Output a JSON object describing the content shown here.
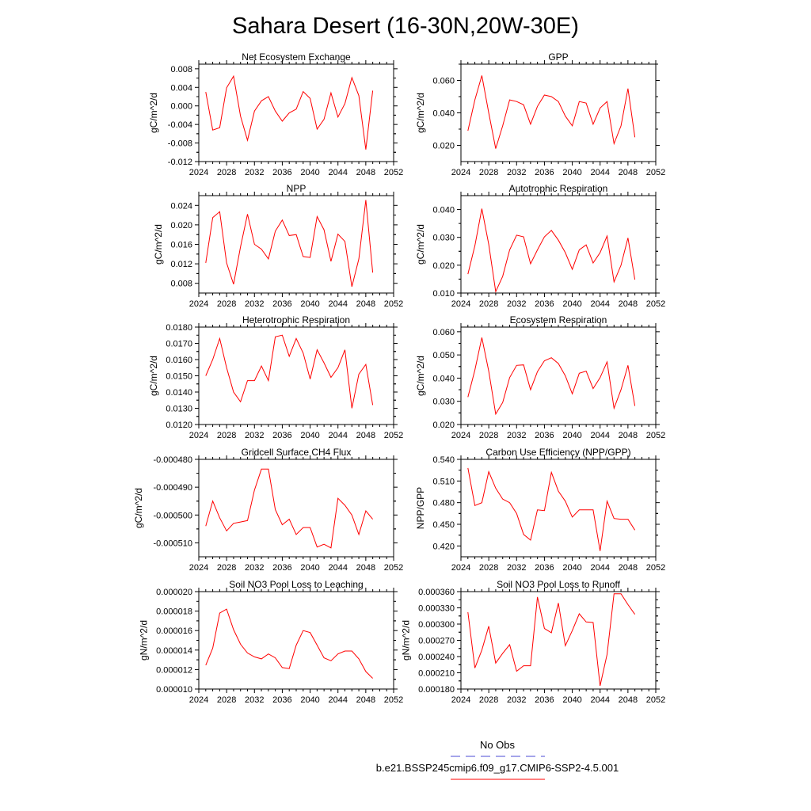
{
  "title": "Sahara Desert (16-30N,20W-30E)",
  "legend": {
    "obs_label": "No Obs",
    "obs_color": "#4b4bd6",
    "model_label": "b.e21.BSSP245cmip6.f09_g17.CMIP6-SSP2-4.5.001",
    "model_color": "#ff0000"
  },
  "chart_data": [
    {
      "type": "line",
      "title": "Net Ecosystem Exchange",
      "ylabel": "gC/m^2/d",
      "xlim": [
        2024,
        2052
      ],
      "xticks": [
        "2024",
        "2028",
        "2032",
        "2036",
        "2040",
        "2044",
        "2048",
        "2052"
      ],
      "ylim": [
        -0.012,
        0.009
      ],
      "yticks": [
        "0.008",
        "0.004",
        "0.000",
        "-0.004",
        "-0.008",
        "-0.012"
      ],
      "x": [
        2025,
        2026,
        2027,
        2028,
        2029,
        2030,
        2031,
        2032,
        2033,
        2034,
        2035,
        2036,
        2037,
        2038,
        2039,
        2040,
        2041,
        2042,
        2043,
        2044,
        2045,
        2046,
        2047,
        2048,
        2049
      ],
      "y": [
        0.003,
        -0.0052,
        -0.0047,
        0.0039,
        0.0064,
        -0.0022,
        -0.0074,
        -0.0011,
        0.0011,
        0.002,
        -0.0011,
        -0.0033,
        -0.0015,
        -0.0007,
        0.0031,
        0.0016,
        -0.005,
        -0.0029,
        0.0028,
        -0.0024,
        0.0005,
        0.0061,
        0.0022,
        -0.0094,
        0.0033
      ]
    },
    {
      "type": "line",
      "title": "GPP",
      "ylabel": "gC/m^2/d",
      "xlim": [
        2024,
        2052
      ],
      "xticks": [
        "2024",
        "2028",
        "2032",
        "2036",
        "2040",
        "2044",
        "2048",
        "2052"
      ],
      "ylim": [
        0.01,
        0.07
      ],
      "yticks": [
        "0.060",
        "0.040",
        "0.020"
      ],
      "x": [
        2025,
        2026,
        2027,
        2028,
        2029,
        2030,
        2031,
        2032,
        2033,
        2034,
        2035,
        2036,
        2037,
        2038,
        2039,
        2040,
        2041,
        2042,
        2043,
        2044,
        2045,
        2046,
        2047,
        2048,
        2049
      ],
      "y": [
        0.029,
        0.048,
        0.063,
        0.04,
        0.018,
        0.032,
        0.048,
        0.047,
        0.045,
        0.033,
        0.044,
        0.051,
        0.05,
        0.047,
        0.038,
        0.032,
        0.047,
        0.046,
        0.033,
        0.043,
        0.047,
        0.021,
        0.032,
        0.055,
        0.025
      ]
    },
    {
      "type": "line",
      "title": "NPP",
      "ylabel": "gC/m^2/d",
      "xlim": [
        2024,
        2052
      ],
      "xticks": [
        "2024",
        "2028",
        "2032",
        "2036",
        "2040",
        "2044",
        "2048",
        "2052"
      ],
      "ylim": [
        0.006,
        0.026
      ],
      "yticks": [
        "0.024",
        "0.020",
        "0.016",
        "0.012",
        "0.008"
      ],
      "x": [
        2025,
        2026,
        2027,
        2028,
        2029,
        2030,
        2031,
        2032,
        2033,
        2034,
        2035,
        2036,
        2037,
        2038,
        2039,
        2040,
        2041,
        2042,
        2043,
        2044,
        2045,
        2046,
        2047,
        2048,
        2049
      ],
      "y": [
        0.0122,
        0.0215,
        0.0227,
        0.0122,
        0.0078,
        0.0155,
        0.0222,
        0.016,
        0.015,
        0.013,
        0.0187,
        0.021,
        0.0178,
        0.018,
        0.0135,
        0.0133,
        0.0217,
        0.019,
        0.0125,
        0.0181,
        0.0166,
        0.0073,
        0.013,
        0.0251,
        0.0102
      ]
    },
    {
      "type": "line",
      "title": "Autotrophic Respiration",
      "ylabel": "gC/m^2/d",
      "xlim": [
        2024,
        2052
      ],
      "xticks": [
        "2024",
        "2028",
        "2032",
        "2036",
        "2040",
        "2044",
        "2048",
        "2052"
      ],
      "ylim": [
        0.01,
        0.045
      ],
      "yticks": [
        "0.040",
        "0.030",
        "0.020",
        "0.010"
      ],
      "x": [
        2025,
        2026,
        2027,
        2028,
        2029,
        2030,
        2031,
        2032,
        2033,
        2034,
        2035,
        2036,
        2037,
        2038,
        2039,
        2040,
        2041,
        2042,
        2043,
        2044,
        2045,
        2046,
        2047,
        2048,
        2049
      ],
      "y": [
        0.0168,
        0.027,
        0.0403,
        0.0275,
        0.0105,
        0.016,
        0.0255,
        0.0308,
        0.0302,
        0.0205,
        0.0255,
        0.0302,
        0.0325,
        0.029,
        0.0245,
        0.0185,
        0.0255,
        0.0273,
        0.0208,
        0.0245,
        0.0305,
        0.014,
        0.02,
        0.0298,
        0.0148
      ]
    },
    {
      "type": "line",
      "title": "Heterotrophic Respiration",
      "ylabel": "gC/m^2/d",
      "xlim": [
        2024,
        2052
      ],
      "xticks": [
        "2024",
        "2028",
        "2032",
        "2036",
        "2040",
        "2044",
        "2048",
        "2052"
      ],
      "ylim": [
        0.012,
        0.018
      ],
      "yticks": [
        "0.0180",
        "0.0170",
        "0.0160",
        "0.0150",
        "0.0140",
        "0.0130",
        "0.0120"
      ],
      "x": [
        2025,
        2026,
        2027,
        2028,
        2029,
        2030,
        2031,
        2032,
        2033,
        2034,
        2035,
        2036,
        2037,
        2038,
        2039,
        2040,
        2041,
        2042,
        2043,
        2044,
        2045,
        2046,
        2047,
        2048,
        2049
      ],
      "y": [
        0.015,
        0.016,
        0.0173,
        0.0155,
        0.014,
        0.0134,
        0.0147,
        0.0147,
        0.0156,
        0.0147,
        0.0174,
        0.0175,
        0.0162,
        0.0173,
        0.0164,
        0.0148,
        0.0166,
        0.0158,
        0.0149,
        0.0155,
        0.0166,
        0.013,
        0.0151,
        0.0157,
        0.0132
      ]
    },
    {
      "type": "line",
      "title": "Ecosystem Respiration",
      "ylabel": "gC/m^2/d",
      "xlim": [
        2024,
        2052
      ],
      "xticks": [
        "2024",
        "2028",
        "2032",
        "2036",
        "2040",
        "2044",
        "2048",
        "2052"
      ],
      "ylim": [
        0.02,
        0.062
      ],
      "yticks": [
        "0.060",
        "0.050",
        "0.040",
        "0.030",
        "0.020"
      ],
      "x": [
        2025,
        2026,
        2027,
        2028,
        2029,
        2030,
        2031,
        2032,
        2033,
        2034,
        2035,
        2036,
        2037,
        2038,
        2039,
        2040,
        2041,
        2042,
        2043,
        2044,
        2045,
        2046,
        2047,
        2048,
        2049
      ],
      "y": [
        0.0318,
        0.0435,
        0.0575,
        0.043,
        0.0245,
        0.0295,
        0.0402,
        0.0455,
        0.0457,
        0.035,
        0.0428,
        0.0475,
        0.0488,
        0.0463,
        0.041,
        0.0332,
        0.0421,
        0.043,
        0.0355,
        0.0402,
        0.047,
        0.027,
        0.035,
        0.0455,
        0.028
      ]
    },
    {
      "type": "line",
      "title": "Gridcell Surface CH4 Flux",
      "ylabel": "gC/m^2/d",
      "xlim": [
        2024,
        2052
      ],
      "xticks": [
        "2024",
        "2028",
        "2032",
        "2036",
        "2040",
        "2044",
        "2048",
        "2052"
      ],
      "ylim": [
        -0.000515,
        -0.00048
      ],
      "yticks": [
        "-0.000480",
        "-0.000490",
        "-0.000500",
        "-0.000510"
      ],
      "x": [
        2025,
        2026,
        2027,
        2028,
        2029,
        2030,
        2031,
        2032,
        2033,
        2034,
        2035,
        2036,
        2037,
        2038,
        2039,
        2040,
        2041,
        2042,
        2043,
        2044,
        2045,
        2046,
        2047,
        2048,
        2049
      ],
      "y": [
        -0.000504,
        -0.000495,
        -0.000501,
        -0.0005057,
        -0.000503,
        -0.0005025,
        -0.000502,
        -0.000491,
        -0.0004835,
        -0.0004835,
        -0.000498,
        -0.0005035,
        -0.0005015,
        -0.000507,
        -0.0005045,
        -0.0005045,
        -0.0005115,
        -0.0005105,
        -0.0005118,
        -0.000494,
        -0.0004965,
        -0.0005,
        -0.000507,
        -0.0004985,
        -0.0005015
      ]
    },
    {
      "type": "line",
      "title": "Carbon Use Efficiency (NPP/GPP)",
      "ylabel": "NPP/GPP",
      "xlim": [
        2024,
        2052
      ],
      "xticks": [
        "2024",
        "2028",
        "2032",
        "2036",
        "2040",
        "2044",
        "2048",
        "2052"
      ],
      "ylim": [
        0.405,
        0.54
      ],
      "yticks": [
        "0.540",
        "0.510",
        "0.480",
        "0.450",
        "0.420"
      ],
      "x": [
        2025,
        2026,
        2027,
        2028,
        2029,
        2030,
        2031,
        2032,
        2033,
        2034,
        2035,
        2036,
        2037,
        2038,
        2039,
        2040,
        2041,
        2042,
        2043,
        2044,
        2045,
        2046,
        2047,
        2048,
        2049
      ],
      "y": [
        0.528,
        0.476,
        0.48,
        0.523,
        0.5,
        0.485,
        0.48,
        0.465,
        0.436,
        0.428,
        0.47,
        0.469,
        0.522,
        0.496,
        0.482,
        0.46,
        0.47,
        0.47,
        0.47,
        0.413,
        0.482,
        0.458,
        0.457,
        0.457,
        0.442
      ]
    },
    {
      "type": "line",
      "title": "Soil NO3 Pool Loss to Leaching",
      "ylabel": "gN/m^2/d",
      "xlim": [
        2024,
        2052
      ],
      "xticks": [
        "2024",
        "2028",
        "2032",
        "2036",
        "2040",
        "2044",
        "2048",
        "2052"
      ],
      "ylim": [
        1e-05,
        2e-05
      ],
      "yticks": [
        "0.000020",
        "0.000018",
        "0.000016",
        "0.000014",
        "0.000012",
        "0.000010"
      ],
      "x": [
        2025,
        2026,
        2027,
        2028,
        2029,
        2030,
        2031,
        2032,
        2033,
        2034,
        2035,
        2036,
        2037,
        2038,
        2039,
        2040,
        2041,
        2042,
        2043,
        2044,
        2045,
        2046,
        2047,
        2048,
        2049
      ],
      "y": [
        1.245e-05,
        1.42e-05,
        1.78e-05,
        1.82e-05,
        1.61e-05,
        1.46e-05,
        1.37e-05,
        1.33e-05,
        1.31e-05,
        1.36e-05,
        1.32e-05,
        1.22e-05,
        1.21e-05,
        1.45e-05,
        1.6e-05,
        1.58e-05,
        1.45e-05,
        1.32e-05,
        1.29e-05,
        1.36e-05,
        1.39e-05,
        1.39e-05,
        1.31e-05,
        1.18e-05,
        1.11e-05
      ]
    },
    {
      "type": "line",
      "title": "Soil NO3 Pool Loss to Runoff",
      "ylabel": "gN/m^2/d",
      "xlim": [
        2024,
        2052
      ],
      "xticks": [
        "2024",
        "2028",
        "2032",
        "2036",
        "2040",
        "2044",
        "2048",
        "2052"
      ],
      "ylim": [
        0.00018,
        0.00036
      ],
      "yticks": [
        "0.000360",
        "0.000330",
        "0.000300",
        "0.000270",
        "0.000240",
        "0.000210",
        "0.000180"
      ],
      "x": [
        2025,
        2026,
        2027,
        2028,
        2029,
        2030,
        2031,
        2032,
        2033,
        2034,
        2035,
        2036,
        2037,
        2038,
        2039,
        2040,
        2041,
        2042,
        2043,
        2044,
        2045,
        2046,
        2047,
        2048,
        2049
      ],
      "y": [
        0.000322,
        0.000219,
        0.000252,
        0.000296,
        0.000228,
        0.000246,
        0.000262,
        0.000213,
        0.000223,
        0.000223,
        0.00035,
        0.000292,
        0.000284,
        0.000339,
        0.00026,
        0.000288,
        0.000319,
        0.000304,
        0.000303,
        0.000186,
        0.000244,
        0.000356,
        0.000356,
        0.000336,
        0.000318
      ]
    }
  ]
}
